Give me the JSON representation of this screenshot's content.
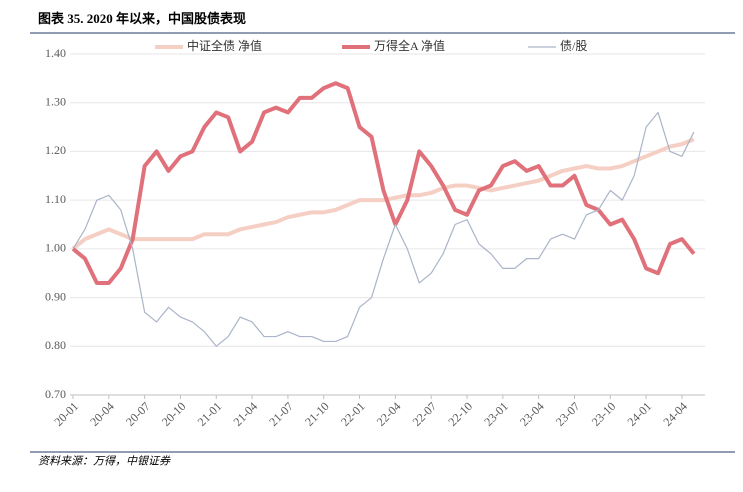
{
  "chart_data": {
    "type": "line",
    "title": "图表 35. 2020 年以来，中国股债表现",
    "source": "资料来源：万得，中银证券",
    "categories": [
      "20-01",
      null,
      null,
      "20-04",
      null,
      null,
      "20-07",
      null,
      null,
      "20-10",
      null,
      null,
      "21-01",
      null,
      null,
      "21-04",
      null,
      null,
      "21-07",
      null,
      null,
      "21-10",
      null,
      null,
      "22-01",
      null,
      null,
      "22-04",
      null,
      null,
      "22-07",
      null,
      null,
      "22-10",
      null,
      null,
      "23-01",
      null,
      null,
      "23-04",
      null,
      null,
      "23-07",
      null,
      null,
      "23-10",
      null,
      null,
      "24-01",
      null,
      null,
      "24-04",
      null
    ],
    "series": [
      {
        "name": "中证全债 净值",
        "color": "#f5cfc3",
        "width": 4,
        "values": [
          1.0,
          1.02,
          1.03,
          1.04,
          1.03,
          1.02,
          1.02,
          1.02,
          1.02,
          1.02,
          1.02,
          1.03,
          1.03,
          1.03,
          1.04,
          1.045,
          1.05,
          1.055,
          1.065,
          1.07,
          1.075,
          1.075,
          1.08,
          1.09,
          1.1,
          1.1,
          1.1,
          1.105,
          1.11,
          1.11,
          1.115,
          1.125,
          1.13,
          1.13,
          1.125,
          1.12,
          1.125,
          1.13,
          1.135,
          1.14,
          1.15,
          1.16,
          1.165,
          1.17,
          1.165,
          1.165,
          1.17,
          1.18,
          1.19,
          1.2,
          1.21,
          1.215,
          1.225
        ]
      },
      {
        "name": "万得全A 净值",
        "color": "#e0707a",
        "width": 4,
        "values": [
          1.0,
          0.98,
          0.93,
          0.93,
          0.96,
          1.02,
          1.17,
          1.2,
          1.16,
          1.19,
          1.2,
          1.25,
          1.28,
          1.27,
          1.2,
          1.22,
          1.28,
          1.29,
          1.28,
          1.31,
          1.31,
          1.33,
          1.34,
          1.33,
          1.25,
          1.23,
          1.12,
          1.05,
          1.1,
          1.2,
          1.17,
          1.13,
          1.08,
          1.07,
          1.12,
          1.13,
          1.17,
          1.18,
          1.16,
          1.17,
          1.13,
          1.13,
          1.15,
          1.09,
          1.08,
          1.05,
          1.06,
          1.02,
          0.96,
          0.95,
          1.01,
          1.02,
          0.99
        ]
      },
      {
        "name": "债/股",
        "color": "#aab4c8",
        "width": 1.2,
        "values": [
          1.0,
          1.04,
          1.1,
          1.11,
          1.08,
          1.0,
          0.87,
          0.85,
          0.88,
          0.86,
          0.85,
          0.83,
          0.8,
          0.82,
          0.86,
          0.85,
          0.82,
          0.82,
          0.83,
          0.82,
          0.82,
          0.81,
          0.81,
          0.82,
          0.88,
          0.9,
          0.98,
          1.05,
          1.0,
          0.93,
          0.95,
          0.99,
          1.05,
          1.06,
          1.01,
          0.99,
          0.96,
          0.96,
          0.98,
          0.98,
          1.02,
          1.03,
          1.02,
          1.07,
          1.08,
          1.12,
          1.1,
          1.15,
          1.25,
          1.28,
          1.2,
          1.19,
          1.24
        ]
      }
    ],
    "ylim": [
      0.7,
      1.4
    ],
    "yticks": [
      {
        "value": 0.7,
        "label": "0.70"
      },
      {
        "value": 0.8,
        "label": "0.80"
      },
      {
        "value": 0.9,
        "label": "0.90"
      },
      {
        "value": 1.0,
        "label": "1.00"
      },
      {
        "value": 1.1,
        "label": "1.10"
      },
      {
        "value": 1.2,
        "label": "1.20"
      },
      {
        "value": 1.3,
        "label": "1.30"
      },
      {
        "value": 1.4,
        "label": "1.40"
      }
    ],
    "grid": true
  }
}
